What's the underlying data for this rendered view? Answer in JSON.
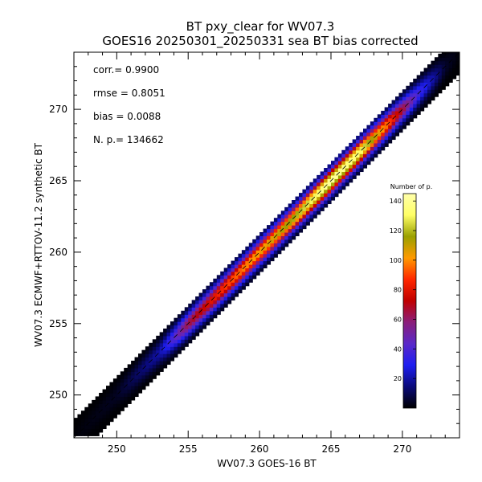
{
  "chart_data": {
    "type": "heatmap",
    "title": "BT pxy_clear for WV07.3",
    "subtitle": "GOES16 20250301_20250331 sea BT bias corrected",
    "xlabel": "WV07.3 GOES-16 BT",
    "ylabel": "WV07.3 ECMWF+RTTOV-11.2 synthetic BT",
    "xlim": [
      247,
      274
    ],
    "ylim": [
      247,
      274
    ],
    "x_ticks": [
      250,
      255,
      260,
      265,
      270
    ],
    "y_ticks": [
      250,
      255,
      260,
      265,
      270
    ],
    "grid": false,
    "reference_line": "y = x (dashed)",
    "stats": {
      "corr": "corr.= 0.9900",
      "rmse": "rmse = 0.8051",
      "bias": "bias = 0.0088",
      "np": "N. p.=  134662"
    },
    "density_ridge": [
      {
        "x": 247.0,
        "count": 1
      },
      {
        "x": 250.0,
        "count": 4
      },
      {
        "x": 253.0,
        "count": 20
      },
      {
        "x": 255.0,
        "count": 65
      },
      {
        "x": 257.0,
        "count": 85
      },
      {
        "x": 259.0,
        "count": 100
      },
      {
        "x": 261.0,
        "count": 110
      },
      {
        "x": 263.0,
        "count": 125
      },
      {
        "x": 265.0,
        "count": 145
      },
      {
        "x": 267.0,
        "count": 135
      },
      {
        "x": 269.0,
        "count": 95
      },
      {
        "x": 271.0,
        "count": 40
      },
      {
        "x": 273.0,
        "count": 5
      },
      {
        "x": 274.0,
        "count": 1
      }
    ],
    "colorbar": {
      "title": "Number of p.",
      "min": 0,
      "max": 145,
      "ticks": [
        20,
        40,
        60,
        80,
        100,
        120,
        140
      ],
      "colors": [
        "#000000",
        "#0a0a7a",
        "#1e1ef0",
        "#5a28c8",
        "#8a1e7a",
        "#c00000",
        "#ff2800",
        "#ff9a00",
        "#9aa000",
        "#ffff66",
        "#ffffaa"
      ]
    }
  }
}
